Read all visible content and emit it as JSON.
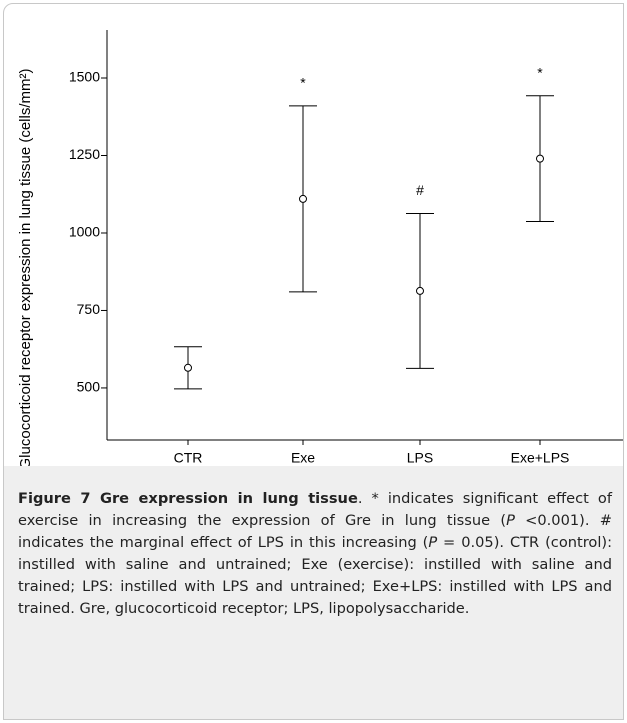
{
  "chart_data": {
    "type": "errorbar",
    "ylabel": "Glucocorticoid receptor expression in lung tissue (cells/mm²)",
    "categories": [
      "CTR",
      "Exe",
      "LPS",
      "Exe+LPS"
    ],
    "values": [
      565,
      1110,
      813,
      1240
    ],
    "errors": [
      68,
      300,
      250,
      203
    ],
    "markers": [
      null,
      "*",
      "#",
      "*"
    ],
    "color": "#000000",
    "ylim": [
      332,
      1655
    ],
    "yticks": [
      500,
      750,
      1000,
      1250,
      1500
    ]
  },
  "caption": {
    "title": "Figure 7 Gre expression in lung tissue",
    "parts": [
      ". * indicates significant effect of exercise in increasing the expression of Gre in lung tissue (",
      "P",
      " <0.001). # indicates the marginal effect of LPS in this increasing (",
      "P",
      " = 0.05). CTR (control): instilled with saline and untrained; Exe (exercise): instilled with saline and trained; LPS: instilled with LPS and untrained; Exe+LPS: instilled with LPS and trained. Gre, glucocorticoid receptor; LPS, lipopolysaccharide."
    ]
  }
}
